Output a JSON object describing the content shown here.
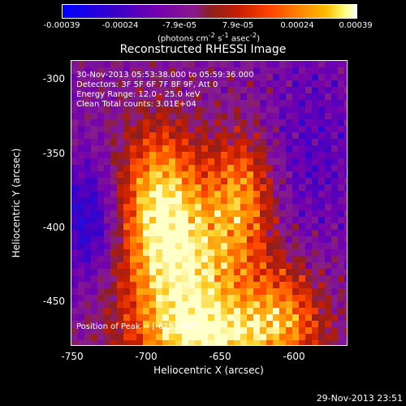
{
  "colorbar": {
    "ticks": [
      "-0.00039",
      "-0.00024",
      "-7.9e-05",
      "7.9e-05",
      "0.00024",
      "0.00039"
    ],
    "units_text": "(photons cm",
    "units_sup1": "-2",
    "units_mid": " s",
    "units_sup2": "-1",
    "units_end": " asec",
    "units_sup3": "-2",
    "units_close": ")"
  },
  "title": "Reconstructed RHESSI Image",
  "info": {
    "time_range": "30-Nov-2013 05:53:38.000 to 05:59:36.000",
    "detectors": "Detectors: 3F 5F 6F 7F 8F 9F, Att 0",
    "energy": "Energy Range: 12.0 - 25.0 keV",
    "clean": "Clean    Total counts: 3.01E+04",
    "peak": "Position of Peak = [-615,-467]"
  },
  "axes": {
    "xlabel": "Heliocentric X (arcsec)",
    "ylabel": "Heliocentric Y (arcsec)",
    "xticks": [
      "-750",
      "-700",
      "-650",
      "-600"
    ],
    "yticks": [
      "-300",
      "-350",
      "-400",
      "-450"
    ]
  },
  "timestamp": "29-Nov-2013 23:51"
}
